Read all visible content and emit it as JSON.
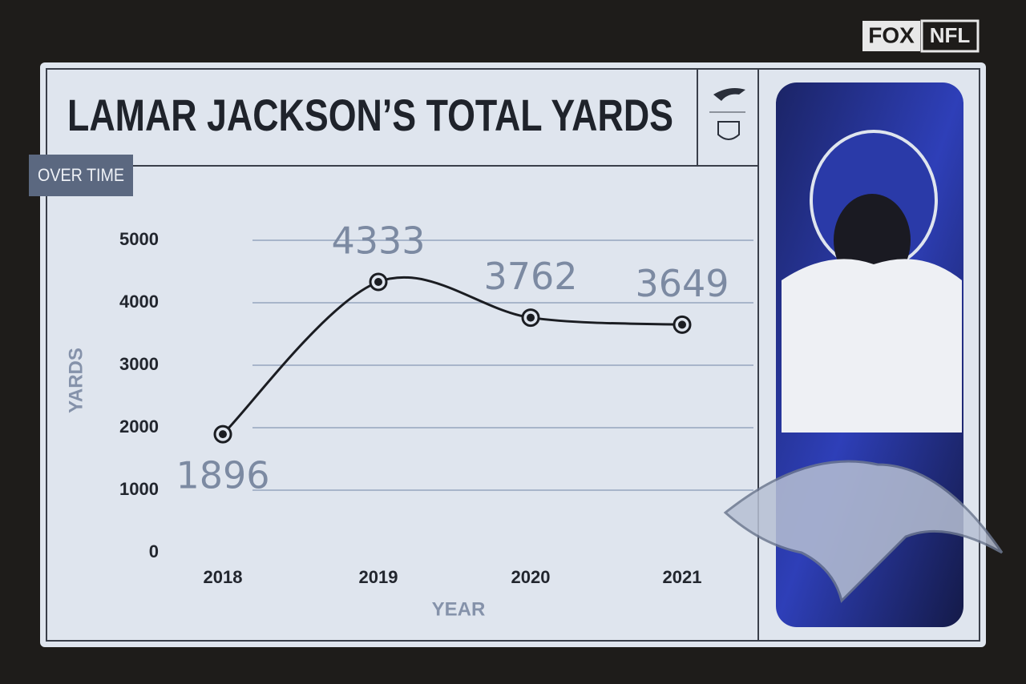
{
  "branding": {
    "fox": "FOX",
    "nfl": "NFL"
  },
  "chart_data": {
    "type": "line",
    "title": "LAMAR JACKSON’S TOTAL YARDS",
    "subtitle": "OVER TIME",
    "x_label": "YEAR",
    "y_label": "YARDS",
    "categories": [
      "2018",
      "2019",
      "2020",
      "2021"
    ],
    "values": [
      1896,
      4333,
      3762,
      3649
    ],
    "color": "#1b1d22",
    "ylim": [
      0,
      5000
    ],
    "yticks": [
      0,
      1000,
      2000,
      3000,
      4000,
      5000
    ],
    "grid": true
  }
}
